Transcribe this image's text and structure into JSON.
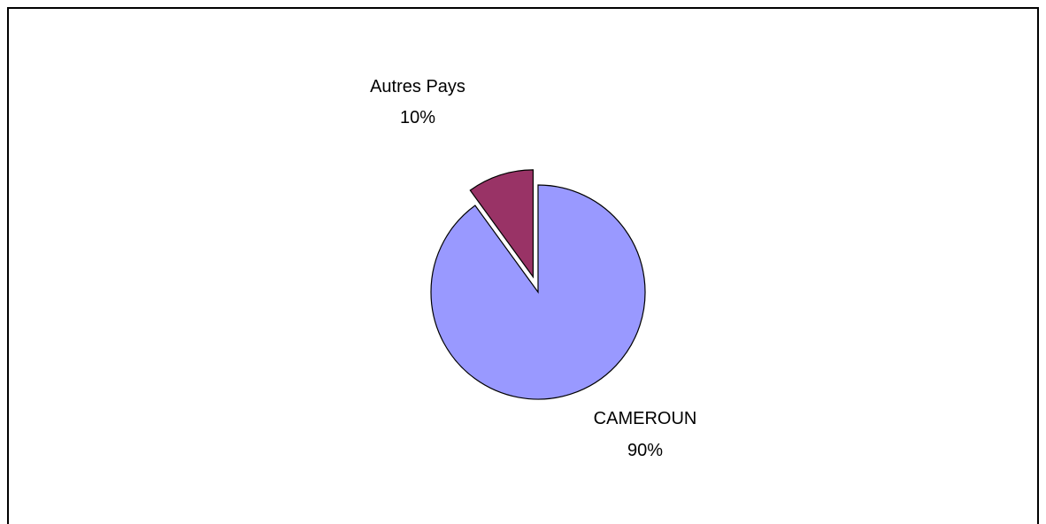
{
  "chart_data": {
    "type": "pie",
    "title": "",
    "slices": [
      {
        "label": "CAMEROUN",
        "value": 90,
        "percent_label": "90%",
        "color": "#9999ff",
        "exploded": false
      },
      {
        "label": "Autres Pays",
        "value": 10,
        "percent_label": "10%",
        "color": "#993366",
        "exploded": true
      }
    ],
    "start_angle": "12 o'clock",
    "direction": "clockwise",
    "legend": "none"
  }
}
